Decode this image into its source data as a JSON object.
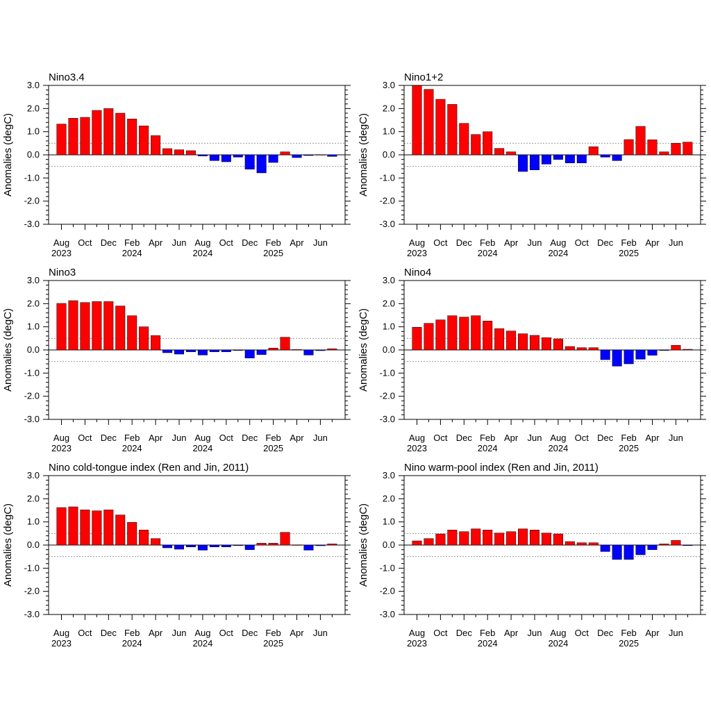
{
  "colors": {
    "positive": "#ff0000",
    "negative": "#0000ff",
    "reference_line": "#999999"
  },
  "chart_data": [
    {
      "type": "bar",
      "title": "Nino3.4",
      "ylabel": "Anomalies (degC)",
      "ylim": [
        -3.0,
        3.0
      ],
      "yticks": [
        "3.0",
        "2.0",
        "1.0",
        "0.0",
        "-1.0",
        "-2.0",
        "-3.0"
      ],
      "reference_lines": [
        0.5,
        -0.5
      ],
      "xticklabels": [
        [
          "Aug",
          "2023"
        ],
        [
          "Oct"
        ],
        [
          "Dec"
        ],
        [
          "Feb",
          "2024"
        ],
        [
          "Apr"
        ],
        [
          "Jun"
        ],
        [
          "Aug",
          "2024"
        ],
        [
          "Oct"
        ],
        [
          "Dec"
        ],
        [
          "Feb",
          "2025"
        ],
        [
          "Apr"
        ],
        [
          "Jun"
        ]
      ],
      "values": [
        1.33,
        1.58,
        1.62,
        1.92,
        2.0,
        1.8,
        1.55,
        1.25,
        0.83,
        0.27,
        0.22,
        0.18,
        -0.05,
        -0.25,
        -0.3,
        -0.1,
        -0.62,
        -0.78,
        -0.33,
        0.13,
        -0.12,
        -0.03,
        0.01,
        -0.07
      ]
    },
    {
      "type": "bar",
      "title": "Nino1+2",
      "ylabel": "Anomalies (degC)",
      "ylim": [
        -3.0,
        3.0
      ],
      "yticks": [
        "3.0",
        "2.0",
        "1.0",
        "0.0",
        "-1.0",
        "-2.0",
        "-3.0"
      ],
      "reference_lines": [
        0.5,
        -0.5
      ],
      "xticklabels": [
        [
          "Aug",
          "2023"
        ],
        [
          "Oct"
        ],
        [
          "Dec"
        ],
        [
          "Feb",
          "2024"
        ],
        [
          "Apr"
        ],
        [
          "Jun"
        ],
        [
          "Aug",
          "2024"
        ],
        [
          "Oct"
        ],
        [
          "Dec"
        ],
        [
          "Feb",
          "2025"
        ],
        [
          "Apr"
        ],
        [
          "Jun"
        ]
      ],
      "values": [
        3.0,
        2.83,
        2.4,
        2.18,
        1.36,
        0.88,
        1.0,
        0.28,
        0.13,
        -0.72,
        -0.65,
        -0.4,
        -0.2,
        -0.35,
        -0.35,
        0.35,
        -0.1,
        -0.25,
        0.66,
        1.23,
        0.65,
        0.13,
        0.5,
        0.55
      ]
    },
    {
      "type": "bar",
      "title": "Nino3",
      "ylabel": "Anomalies (degC)",
      "ylim": [
        -3.0,
        3.0
      ],
      "yticks": [
        "3.0",
        "2.0",
        "1.0",
        "0.0",
        "-1.0",
        "-2.0",
        "-3.0"
      ],
      "reference_lines": [
        0.5,
        -0.5
      ],
      "xticklabels": [
        [
          "Aug",
          "2023"
        ],
        [
          "Oct"
        ],
        [
          "Dec"
        ],
        [
          "Feb",
          "2024"
        ],
        [
          "Apr"
        ],
        [
          "Jun"
        ],
        [
          "Aug",
          "2024"
        ],
        [
          "Oct"
        ],
        [
          "Dec"
        ],
        [
          "Feb",
          "2025"
        ],
        [
          "Apr"
        ],
        [
          "Jun"
        ]
      ],
      "values": [
        2.01,
        2.13,
        2.05,
        2.09,
        2.09,
        1.9,
        1.48,
        1.0,
        0.62,
        -0.12,
        -0.18,
        -0.08,
        -0.22,
        -0.08,
        -0.08,
        -0.01,
        -0.35,
        -0.2,
        0.08,
        0.55,
        0.02,
        -0.22,
        -0.03,
        0.05
      ]
    },
    {
      "type": "bar",
      "title": "Nino4",
      "ylabel": "Anomalies (degC)",
      "ylim": [
        -3.0,
        3.0
      ],
      "yticks": [
        "3.0",
        "2.0",
        "1.0",
        "0.0",
        "-1.0",
        "-2.0",
        "-3.0"
      ],
      "reference_lines": [
        0.5,
        -0.5
      ],
      "xticklabels": [
        [
          "Aug",
          "2023"
        ],
        [
          "Oct"
        ],
        [
          "Dec"
        ],
        [
          "Feb",
          "2024"
        ],
        [
          "Apr"
        ],
        [
          "Jun"
        ],
        [
          "Aug",
          "2024"
        ],
        [
          "Oct"
        ],
        [
          "Dec"
        ],
        [
          "Feb",
          "2025"
        ],
        [
          "Apr"
        ],
        [
          "Jun"
        ]
      ],
      "values": [
        0.98,
        1.15,
        1.3,
        1.48,
        1.42,
        1.48,
        1.25,
        0.92,
        0.82,
        0.7,
        0.63,
        0.53,
        0.48,
        0.15,
        0.1,
        0.1,
        -0.42,
        -0.7,
        -0.6,
        -0.4,
        -0.23,
        -0.01,
        0.2,
        0.03
      ]
    },
    {
      "type": "bar",
      "title": "Nino cold-tongue index (Ren and Jin, 2011)",
      "ylabel": "Anomalies (degC)",
      "ylim": [
        -3.0,
        3.0
      ],
      "yticks": [
        "3.0",
        "2.0",
        "1.0",
        "0.0",
        "-1.0",
        "-2.0",
        "-3.0"
      ],
      "reference_lines": [
        0.5,
        -0.5
      ],
      "xticklabels": [
        [
          "Aug",
          "2023"
        ],
        [
          "Oct"
        ],
        [
          "Dec"
        ],
        [
          "Feb",
          "2024"
        ],
        [
          "Apr"
        ],
        [
          "Jun"
        ],
        [
          "Aug",
          "2024"
        ],
        [
          "Oct"
        ],
        [
          "Dec"
        ],
        [
          "Feb",
          "2025"
        ],
        [
          "Apr"
        ],
        [
          "Jun"
        ]
      ],
      "values": [
        1.62,
        1.65,
        1.52,
        1.48,
        1.52,
        1.3,
        0.98,
        0.65,
        0.28,
        -0.12,
        -0.18,
        -0.08,
        -0.22,
        -0.08,
        -0.08,
        -0.01,
        -0.2,
        0.08,
        0.08,
        0.55,
        0.01,
        -0.22,
        -0.03,
        0.05
      ]
    },
    {
      "type": "bar",
      "title": "Nino warm-pool index (Ren and Jin, 2011)",
      "ylabel": "Anomalies (degC)",
      "ylim": [
        -3.0,
        3.0
      ],
      "yticks": [
        "3.0",
        "2.0",
        "1.0",
        "0.0",
        "-1.0",
        "-2.0",
        "-3.0"
      ],
      "reference_lines": [
        0.5,
        -0.5
      ],
      "xticklabels": [
        [
          "Aug",
          "2023"
        ],
        [
          "Oct"
        ],
        [
          "Dec"
        ],
        [
          "Feb",
          "2024"
        ],
        [
          "Apr"
        ],
        [
          "Jun"
        ],
        [
          "Aug",
          "2024"
        ],
        [
          "Oct"
        ],
        [
          "Dec"
        ],
        [
          "Feb",
          "2025"
        ],
        [
          "Apr"
        ],
        [
          "Jun"
        ]
      ],
      "values": [
        0.18,
        0.28,
        0.48,
        0.65,
        0.58,
        0.7,
        0.65,
        0.52,
        0.58,
        0.7,
        0.65,
        0.52,
        0.48,
        0.15,
        0.1,
        0.1,
        -0.28,
        -0.62,
        -0.62,
        -0.42,
        -0.2,
        0.05,
        0.2,
        -0.01
      ]
    }
  ]
}
